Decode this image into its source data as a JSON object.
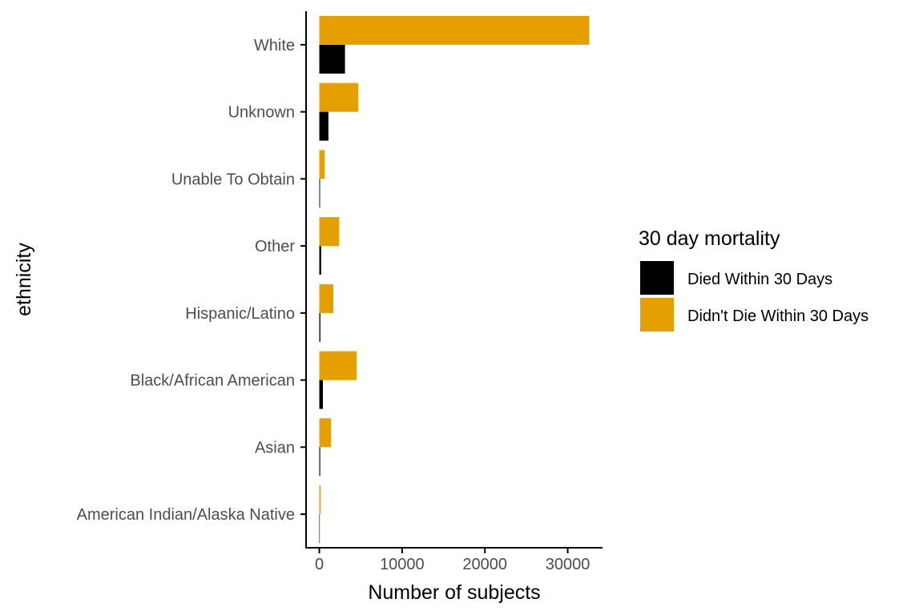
{
  "chart_data": {
    "type": "bar",
    "orientation": "horizontal",
    "categories": [
      "American Indian/Alaska Native",
      "Asian",
      "Black/African American",
      "Hispanic/Latino",
      "Other",
      "Unable To Obtain",
      "Unknown",
      "White"
    ],
    "series": [
      {
        "name": "Died Within 30 Days",
        "color": "#000000",
        "values": [
          10,
          110,
          430,
          130,
          220,
          90,
          1100,
          3100
        ]
      },
      {
        "name": "Didn't Die Within 30 Days",
        "color": "#E69F00",
        "values": [
          170,
          1400,
          4500,
          1700,
          2400,
          650,
          4700,
          32600
        ]
      }
    ],
    "xlabel": "Number of subjects",
    "ylabel": "ethnicity",
    "xlim": [
      -1600,
      34200
    ],
    "xticks": [
      0,
      10000,
      20000,
      30000
    ],
    "grid": false,
    "legend": {
      "title": "30 day mortality",
      "position": "right"
    }
  }
}
